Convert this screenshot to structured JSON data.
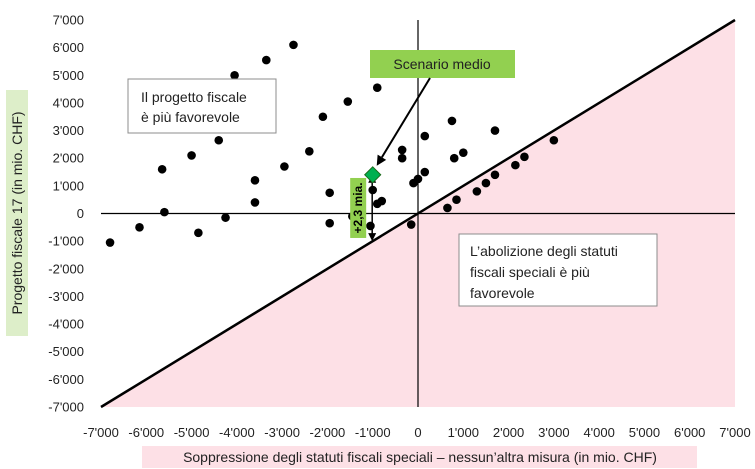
{
  "chart_data": {
    "type": "scatter",
    "title": "",
    "xlabel": "Soppressione degli statuti fiscali speciali – nessun’altra misura (in mio. CHF)",
    "ylabel": "Progetto fiscale 17 (in mio. CHF)",
    "xlim": [
      -7000,
      7000
    ],
    "ylim": [
      -7000,
      7000
    ],
    "x_ticks": [
      -7000,
      -6000,
      -5000,
      -4000,
      -3000,
      -2000,
      -1000,
      0,
      1000,
      2000,
      3000,
      4000,
      5000,
      6000,
      7000
    ],
    "y_ticks": [
      -7000,
      -6000,
      -5000,
      -4000,
      -3000,
      -2000,
      -1000,
      0,
      1000,
      2000,
      3000,
      4000,
      5000,
      6000,
      7000
    ],
    "x_tick_labels": [
      "-7'000",
      "-6'000",
      "-5'000",
      "-4'000",
      "-3'000",
      "-2'000",
      "-1'000",
      "0",
      "1'000",
      "2'000",
      "3'000",
      "4'000",
      "5'000",
      "6'000",
      "7'000"
    ],
    "y_tick_labels": [
      "-7'000",
      "-6'000",
      "-5'000",
      "-4'000",
      "-3'000",
      "-2'000",
      "-1'000",
      "0",
      "1'000",
      "2'000",
      "3'000",
      "4'000",
      "5'000",
      "6'000",
      "7'000"
    ],
    "grid": false,
    "diagonal": {
      "from": [
        -7000,
        -7000
      ],
      "to": [
        7000,
        7000
      ]
    },
    "points": [
      {
        "x": -6800,
        "y": -1050
      },
      {
        "x": -6150,
        "y": -500
      },
      {
        "x": -5650,
        "y": 1600
      },
      {
        "x": -5600,
        "y": 50
      },
      {
        "x": -5000,
        "y": 2100
      },
      {
        "x": -4850,
        "y": -700
      },
      {
        "x": -4400,
        "y": 2650
      },
      {
        "x": -4250,
        "y": -150
      },
      {
        "x": -4050,
        "y": 5000
      },
      {
        "x": -3600,
        "y": 1200
      },
      {
        "x": -3600,
        "y": 400
      },
      {
        "x": -3350,
        "y": 5550
      },
      {
        "x": -2950,
        "y": 1700
      },
      {
        "x": -2750,
        "y": 6100
      },
      {
        "x": -2400,
        "y": 2250
      },
      {
        "x": -2100,
        "y": 3500
      },
      {
        "x": -1950,
        "y": 750
      },
      {
        "x": -1950,
        "y": -350
      },
      {
        "x": -1550,
        "y": 4050
      },
      {
        "x": -1450,
        "y": -100
      },
      {
        "x": -1350,
        "y": 200
      },
      {
        "x": -1050,
        "y": -450
      },
      {
        "x": -1000,
        "y": 850
      },
      {
        "x": -900,
        "y": 4550
      },
      {
        "x": -900,
        "y": 350
      },
      {
        "x": -800,
        "y": 450
      },
      {
        "x": -350,
        "y": 2300
      },
      {
        "x": -350,
        "y": 2000
      },
      {
        "x": -150,
        "y": -400
      },
      {
        "x": -100,
        "y": 1100
      },
      {
        "x": 0,
        "y": 1250
      },
      {
        "x": 150,
        "y": 1500
      },
      {
        "x": 150,
        "y": 2800
      },
      {
        "x": 650,
        "y": 200
      },
      {
        "x": 750,
        "y": 3350
      },
      {
        "x": 800,
        "y": 2000
      },
      {
        "x": 850,
        "y": 500
      },
      {
        "x": 1000,
        "y": 2200
      },
      {
        "x": 1300,
        "y": 800
      },
      {
        "x": 1500,
        "y": 1100
      },
      {
        "x": 1700,
        "y": 3000
      },
      {
        "x": 1700,
        "y": 1400
      },
      {
        "x": 2150,
        "y": 1750
      },
      {
        "x": 2350,
        "y": 2050
      },
      {
        "x": 3000,
        "y": 2650
      }
    ],
    "scenario_point": {
      "x": -1000,
      "y": 1400
    },
    "bracket": {
      "x": -1100,
      "from": -1000,
      "to": 1400,
      "label": "+2,3 mia."
    },
    "annotations": {
      "top_left": "Il progetto fiscale è più favorevole",
      "bottom_right": "L’abolizione degli statuti fiscali speciali è più favorevole",
      "scenario": "Scenario medio"
    },
    "colors": {
      "pink_region": "#fde0e6",
      "label_green": "#92d050",
      "marker_green": "#00b050",
      "box_border": "#8c8c8c"
    }
  }
}
